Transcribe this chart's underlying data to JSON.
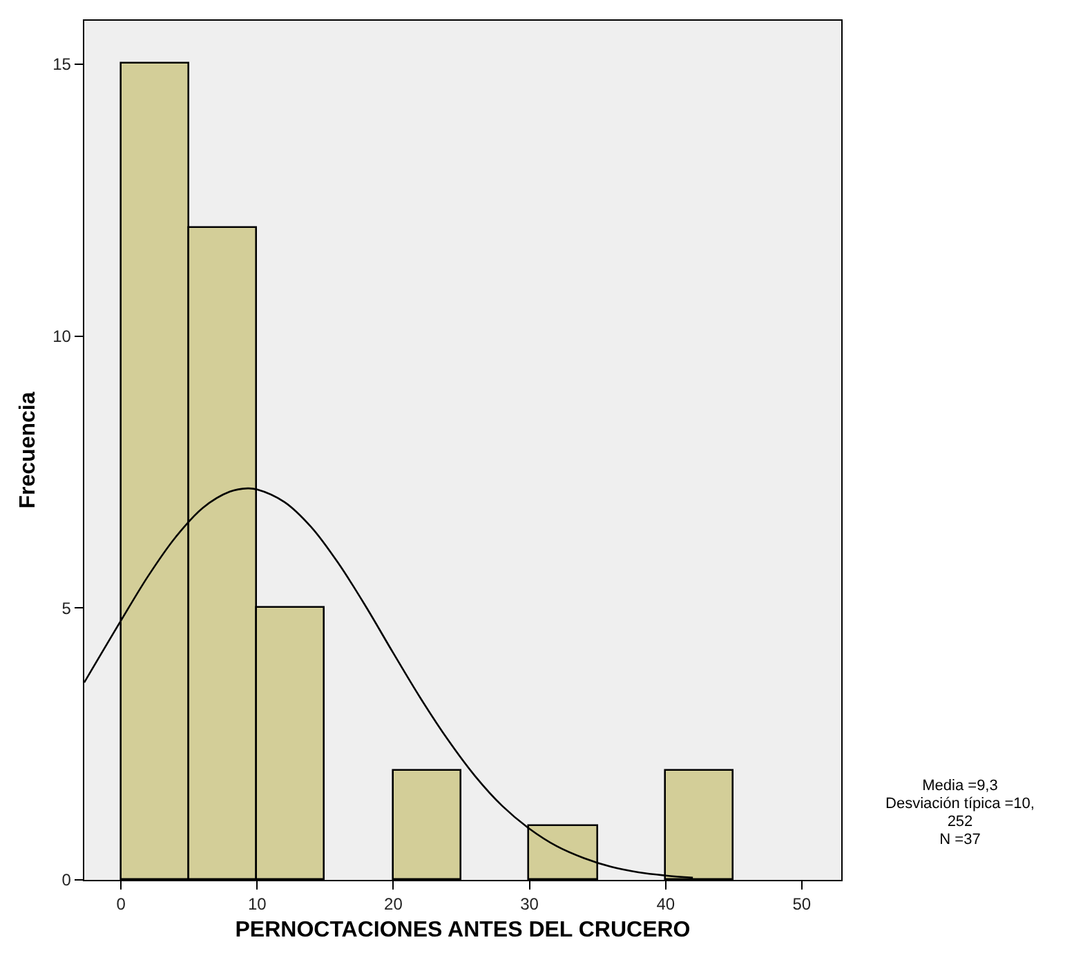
{
  "chart_data": {
    "type": "histogram",
    "xlabel": "PERNOCTACIONES ANTES DEL CRUCERO",
    "ylabel": "Frecuencia",
    "bins": [
      0,
      5,
      10,
      15,
      20,
      25,
      30,
      35,
      40,
      45
    ],
    "values": [
      15,
      12,
      5,
      0,
      2,
      0,
      1,
      0,
      2
    ],
    "color": "#d3ce98",
    "series": [
      {
        "type": "line",
        "color": "#000000",
        "x": [
          -2.7,
          0,
          2,
          4,
          6,
          8,
          9.3,
          10,
          12,
          14,
          16,
          18,
          20,
          22,
          24,
          26,
          28,
          30,
          32,
          34,
          36,
          38,
          40,
          42
        ],
        "values": [
          3.63,
          4.77,
          5.59,
          6.3,
          6.84,
          7.14,
          7.2,
          7.18,
          6.95,
          6.48,
          5.81,
          5.02,
          4.17,
          3.34,
          2.58,
          1.91,
          1.36,
          0.94,
          0.62,
          0.4,
          0.24,
          0.14,
          0.08,
          0.04
        ]
      }
    ],
    "xlim": [
      -2.7,
      52.9
    ],
    "xticks": [
      0,
      10,
      20,
      30,
      40,
      50
    ],
    "ylim": [
      0,
      15.8
    ],
    "yticks": [
      0,
      5,
      10,
      15
    ],
    "grid": false,
    "annotations": [
      "Media =9,3",
      "Desviación típica =10,252",
      "N =37"
    ]
  }
}
